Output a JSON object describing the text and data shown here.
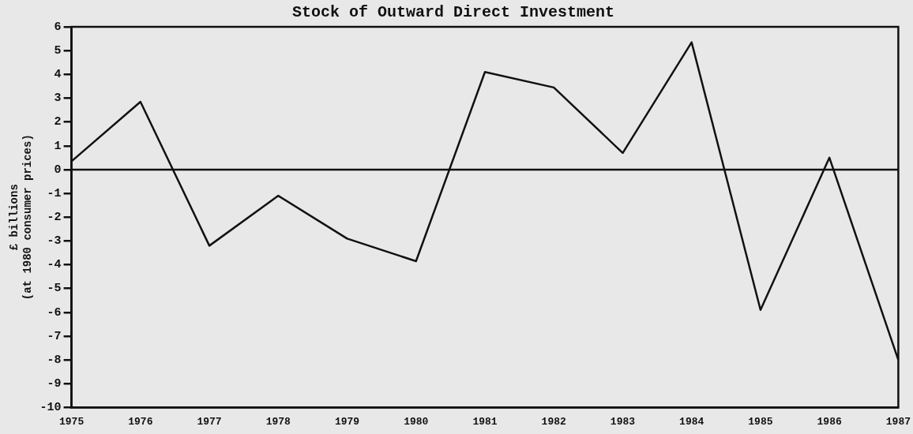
{
  "chart_data": {
    "type": "line",
    "title": "Stock of Outward Direct Investment",
    "ylabel": "£ billions\n(at 1980 consumer prices)",
    "categories": [
      "1975",
      "1976",
      "1977",
      "1978",
      "1979",
      "1980",
      "1981",
      "1982",
      "1983",
      "1984",
      "1985",
      "1986",
      "1987"
    ],
    "series": [
      {
        "color": "#111111",
        "values": [
          0.35,
          2.85,
          -3.2,
          -1.1,
          -2.9,
          -3.85,
          4.1,
          3.45,
          0.7,
          5.35,
          -5.9,
          0.5,
          -8.0
        ]
      }
    ],
    "ylim": [
      -10,
      6
    ],
    "yticks": [
      -10,
      -9,
      -8,
      -7,
      -6,
      -5,
      -4,
      -3,
      -2,
      -1,
      0,
      1,
      2,
      3,
      4,
      5,
      6
    ],
    "ref_lines": [
      {
        "axis": "y",
        "value": 0,
        "color": "#111111"
      }
    ],
    "grid": false,
    "legend": false,
    "marker": "none",
    "line_style": "solid"
  }
}
